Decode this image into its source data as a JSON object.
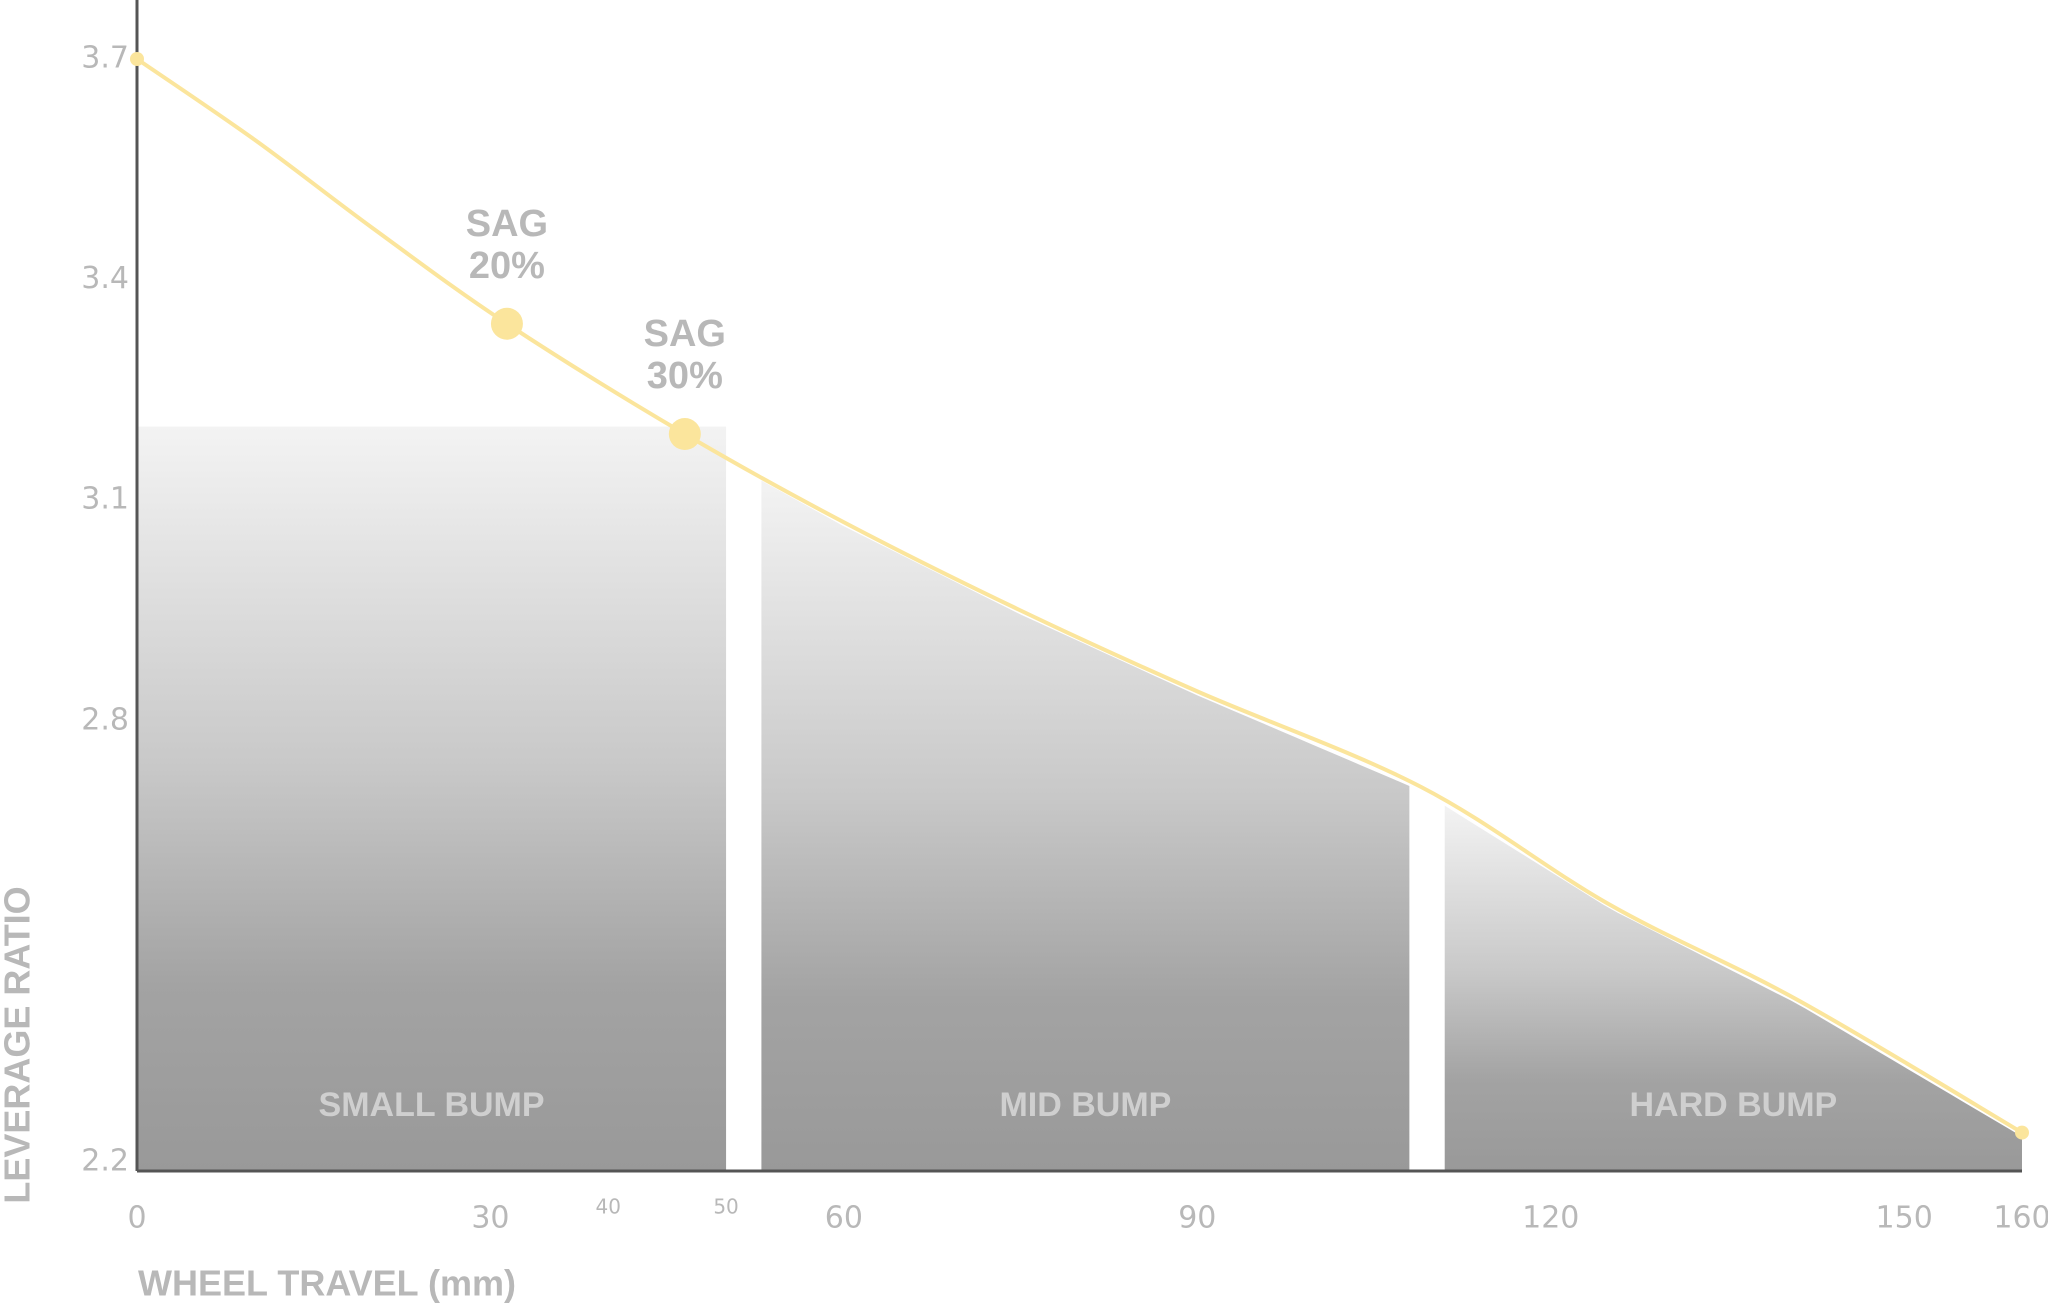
{
  "chart_data": {
    "type": "line",
    "x_label": "WHEEL TRAVEL (mm)",
    "y_label": "LEVERAGE RATIO",
    "x": [
      0,
      10,
      20,
      31.4,
      46.5,
      60,
      75,
      90,
      109,
      125,
      141,
      160
    ],
    "series": [
      {
        "name": "Leverage ratio",
        "color": "#fbe59c",
        "values": [
          3.7,
          3.59,
          3.47,
          3.34,
          3.19,
          3.07,
          2.95,
          2.84,
          2.71,
          2.55,
          2.42,
          2.24
        ]
      }
    ],
    "xlim": [
      0,
      160
    ],
    "xticks": [
      0,
      30,
      60,
      90,
      120,
      150,
      160
    ],
    "minor_xticks": [
      40,
      50
    ],
    "ylim": [
      2.2,
      3.7
    ],
    "yticks": [
      2.2,
      2.8,
      3.1,
      3.4,
      3.7
    ],
    "zones": [
      {
        "label": "SMALL BUMP",
        "start": 0,
        "end": 50,
        "top": 3.2
      },
      {
        "label": "MID BUMP",
        "start": 53,
        "end": 108
      },
      {
        "label": "HARD BUMP",
        "start": 111,
        "end": 160
      }
    ],
    "annotations": [
      {
        "lines": [
          "SAG",
          "20%"
        ],
        "x": 31.4,
        "y": 3.34
      },
      {
        "lines": [
          "SAG",
          "30%"
        ],
        "x": 46.5,
        "y": 3.19
      }
    ]
  }
}
